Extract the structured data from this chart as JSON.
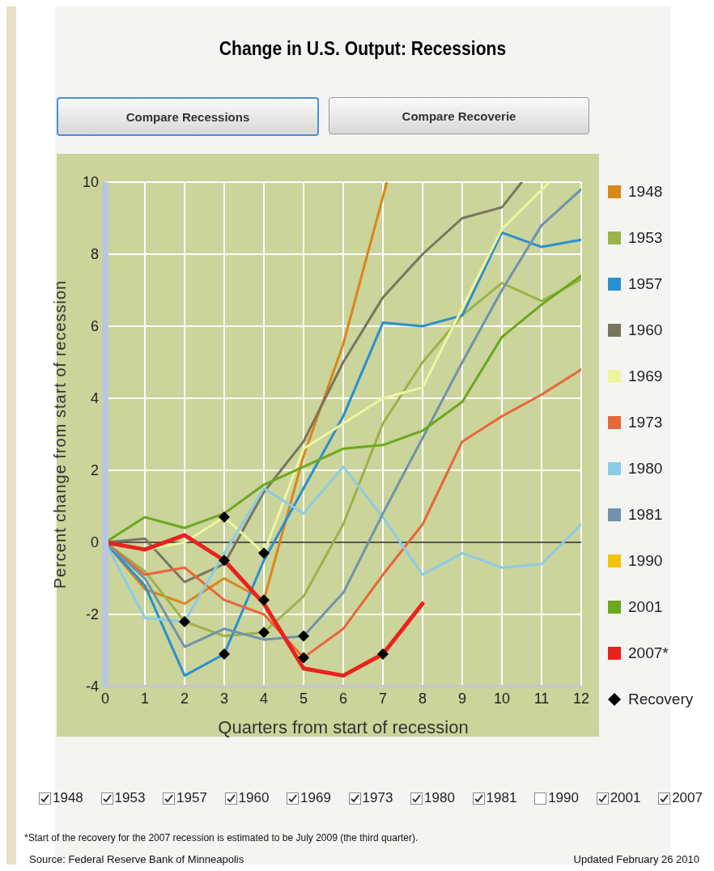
{
  "chart_data": {
    "type": "line",
    "title": "Change in U.S. Output: Recessions",
    "xlabel": "Quarters from start of recession",
    "ylabel": "Percent change from start of recession",
    "annotations": [
      "Compare Recessions",
      "Compare Recoverie",
      "*Start of the recovery for the 2007 recession is estimated to be July 2009 (the third quarter).",
      "Source: Federal Reserve Bank of Minneapolis",
      "Updated February 26 2010",
      "2007"
    ],
    "x": [
      0,
      1,
      2,
      3,
      4,
      5,
      6,
      7,
      8,
      9,
      10,
      11,
      12
    ],
    "xlim": [
      0,
      12
    ],
    "xticks": [
      0,
      1,
      2,
      3,
      4,
      5,
      6,
      7,
      8,
      9,
      10,
      11,
      12
    ],
    "ylim": [
      -4,
      10
    ],
    "yticks": [
      -4,
      -2,
      0,
      2,
      4,
      6,
      8,
      10
    ],
    "grid": true,
    "legend": "right",
    "line_style": "solid",
    "ref_lines": [
      {
        "axis": "y",
        "value": 0,
        "color": "#555555"
      }
    ],
    "series": [
      {
        "name": "1948",
        "color": "#d9861c",
        "x": [
          0,
          1,
          2,
          3,
          4,
          5,
          6,
          7.1
        ],
        "values": [
          0,
          -1.3,
          -1.7,
          -1.0,
          -1.6,
          2.4,
          5.5,
          10
        ]
      },
      {
        "name": "1953",
        "color": "#9cb24a",
        "values": [
          0,
          -0.8,
          -2.2,
          -2.6,
          -2.5,
          -1.5,
          0.5,
          3.3,
          5.0,
          6.3,
          7.2,
          6.7,
          7.3
        ]
      },
      {
        "name": "1957",
        "color": "#2a8fd0",
        "values": [
          0,
          -1.2,
          -3.7,
          -3.1,
          -0.5,
          1.5,
          3.5,
          6.1,
          6.0,
          6.3,
          8.6,
          8.2,
          8.4
        ]
      },
      {
        "name": "1960",
        "color": "#7a7560",
        "x": [
          0,
          1,
          2,
          3,
          4,
          5,
          6,
          7,
          8,
          9,
          10,
          10.5
        ],
        "values": [
          0,
          0.1,
          -1.1,
          -0.6,
          1.4,
          2.8,
          5.0,
          6.8,
          8.0,
          9.0,
          9.3,
          10
        ]
      },
      {
        "name": "1969",
        "color": "#eef5a0",
        "x": [
          0,
          1,
          2,
          3,
          4,
          5,
          6,
          7,
          8,
          9,
          10,
          11.2
        ],
        "values": [
          0,
          -0.2,
          0,
          0.7,
          -0.3,
          2.6,
          3.3,
          4.0,
          4.3,
          6.5,
          8.7,
          10
        ]
      },
      {
        "name": "1973",
        "color": "#e8663a",
        "values": [
          0,
          -0.9,
          -0.7,
          -1.6,
          -2.0,
          -3.2,
          -2.4,
          -0.9,
          0.5,
          2.8,
          3.5,
          4.1,
          4.8
        ]
      },
      {
        "name": "1980",
        "color": "#8ccbe6",
        "values": [
          0,
          -2.1,
          -2.2,
          -0.3,
          1.5,
          0.8,
          2.1,
          0.7,
          -0.9,
          -0.3,
          -0.7,
          -0.6,
          0.5
        ]
      },
      {
        "name": "1981",
        "color": "#6f93ad",
        "values": [
          0,
          -1.0,
          -2.9,
          -2.4,
          -2.7,
          -2.6,
          -1.4,
          0.8,
          2.9,
          5.0,
          7.0,
          8.8,
          9.8
        ]
      },
      {
        "name": "1990",
        "color": "#f5c400",
        "values": [
          null,
          null,
          null,
          null,
          null,
          null,
          null,
          null,
          null,
          null,
          null,
          null,
          null
        ]
      },
      {
        "name": "2001",
        "color": "#6aa81e",
        "values": [
          0,
          0.7,
          0.4,
          0.8,
          1.6,
          2.1,
          2.6,
          2.7,
          3.1,
          3.9,
          5.7,
          6.6,
          7.4
        ]
      },
      {
        "name": "2007*",
        "color": "#e8231c",
        "x": [
          0,
          1,
          2,
          3,
          4,
          5,
          6,
          7,
          8
        ],
        "values": [
          0,
          -0.2,
          0.2,
          -0.5,
          -1.7,
          -3.5,
          -3.7,
          -3.1,
          -1.7
        ]
      },
      {
        "name": "Recovery",
        "type": "scatter",
        "marker": "diamond",
        "color": "#000000",
        "x": [
          2,
          3,
          3,
          3,
          4,
          4,
          4,
          5,
          5,
          7
        ],
        "values": [
          -2.2,
          -3.1,
          0.7,
          -0.5,
          -0.3,
          -1.6,
          -2.5,
          -2.6,
          -3.2,
          -3.1
        ]
      }
    ]
  }
}
